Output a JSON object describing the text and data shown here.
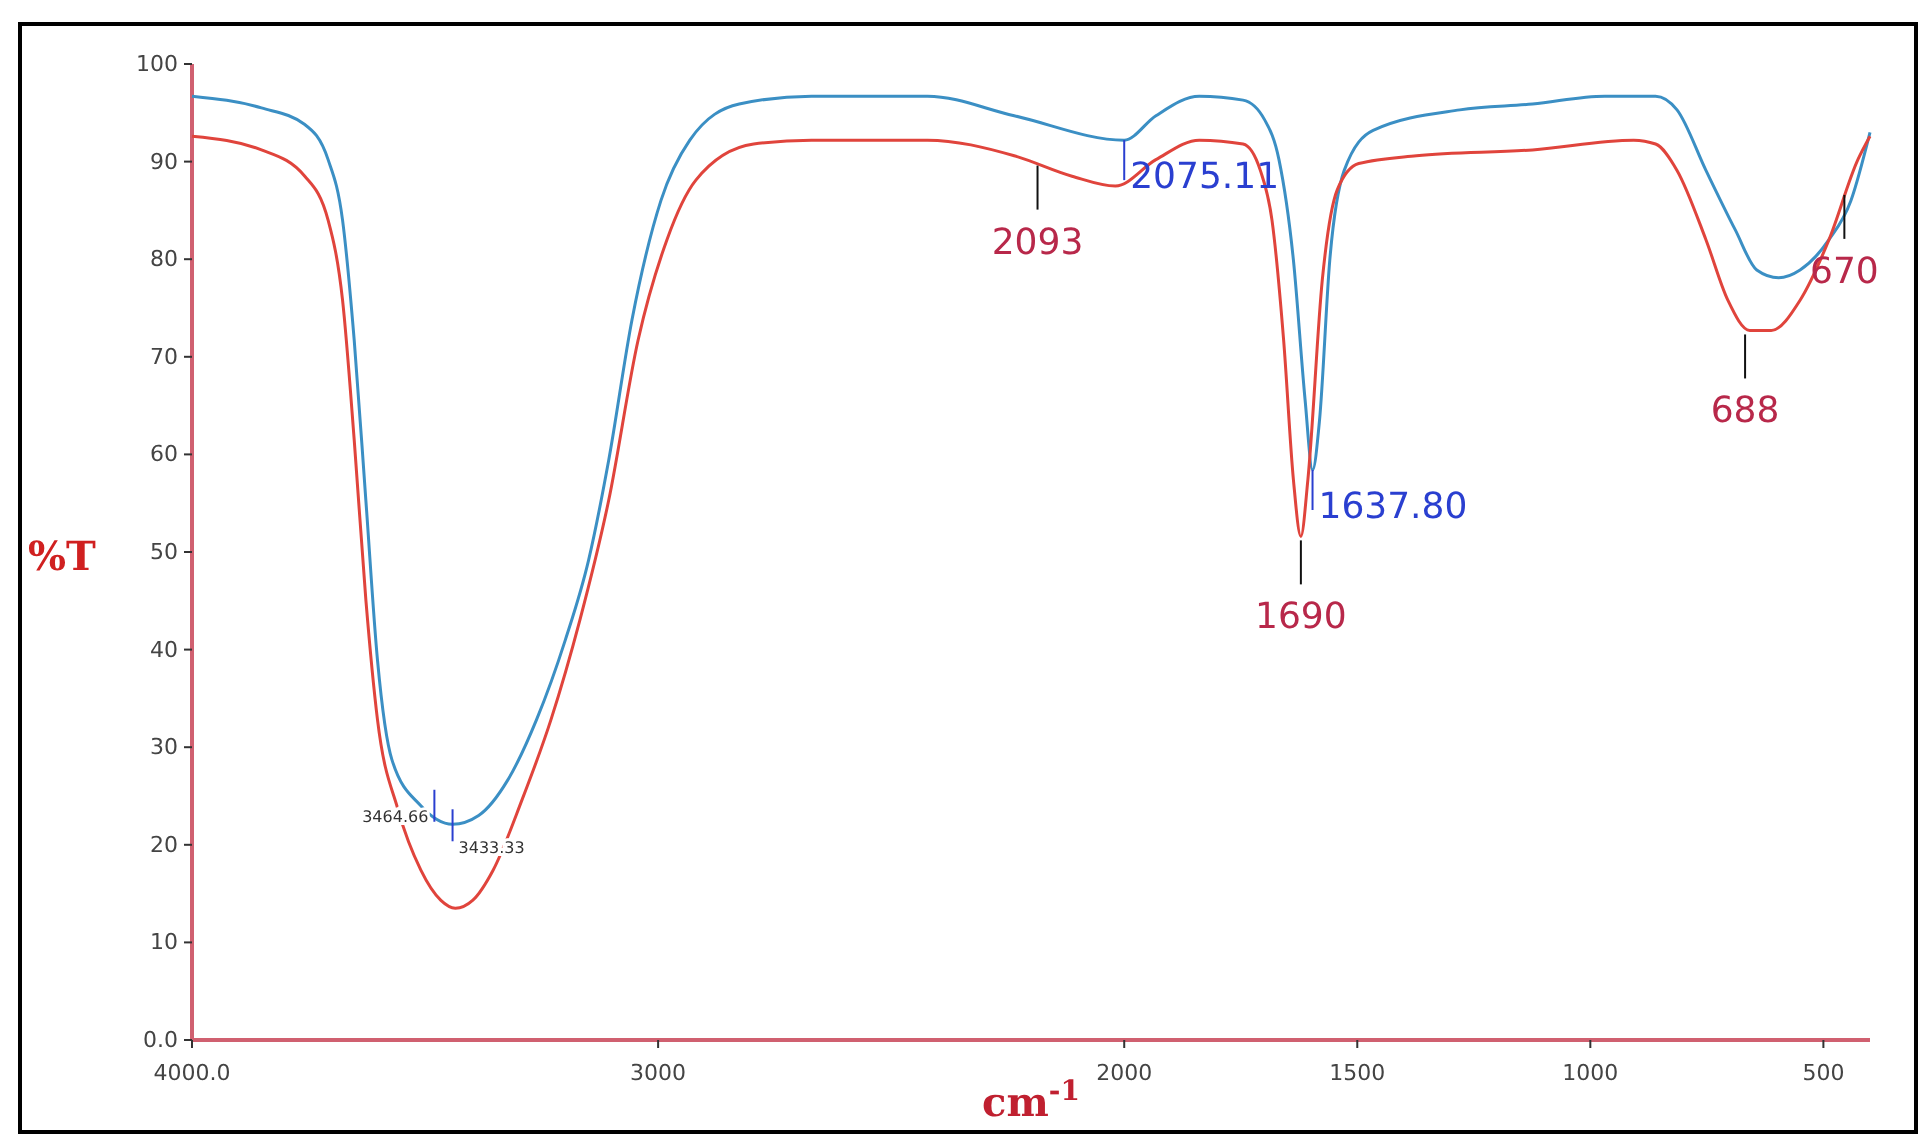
{
  "chart_data": {
    "type": "line",
    "xlabel": "cm$^{-1}$",
    "ylabel": "%T",
    "xlim": [
      4000,
      400
    ],
    "xticks": [
      {
        "value": 4000,
        "label": "4000.0"
      },
      3000,
      2000,
      1500,
      1000,
      500
    ],
    "ylim": [
      0,
      100
    ],
    "yticks": [
      {
        "value": 0,
        "label": "0.0"
      },
      10,
      20,
      30,
      40,
      50,
      60,
      70,
      80,
      90,
      100
    ],
    "series": [
      {
        "color": "#3b8fc4",
        "x": [
          4000,
          3851,
          3758,
          3708,
          3677,
          3652,
          3627,
          3602,
          3571,
          3509,
          3441,
          3385,
          3323,
          3261,
          3199,
          3149,
          3106,
          3056,
          2994,
          2932,
          2826,
          2671,
          2422,
          2236,
          2000,
          1932,
          1839,
          1745,
          1699,
          1668,
          1637,
          1612,
          1596,
          1581,
          1559,
          1528,
          1466,
          1280,
          1124,
          969,
          860,
          814,
          752,
          689,
          643,
          596,
          550,
          488,
          441,
          400
        ],
        "values": [
          96.7,
          95.5,
          93.8,
          90.2,
          84,
          71.7,
          55.3,
          38.9,
          28.7,
          24,
          22.1,
          23,
          26.6,
          32.8,
          41,
          49.2,
          59.4,
          73.8,
          86,
          92.2,
          95.9,
          96.7,
          96.7,
          94.7,
          92.2,
          94.7,
          96.7,
          96.3,
          94.3,
          90.2,
          79.9,
          65.6,
          58.4,
          63.5,
          79.9,
          89.1,
          93.2,
          95.3,
          95.9,
          96.7,
          96.7,
          95.3,
          89.1,
          83,
          78.9,
          78.1,
          78.9,
          82,
          86,
          93
        ]
      },
      {
        "color": "#e0443c",
        "x": [
          4000,
          3851,
          3758,
          3708,
          3677,
          3652,
          3627,
          3602,
          3558,
          3509,
          3466,
          3435,
          3398,
          3354,
          3292,
          3230,
          3168,
          3106,
          3043,
          2981,
          2919,
          2795,
          2671,
          2422,
          2236,
          2112,
          2019,
          1932,
          1839,
          1745,
          1708,
          1683,
          1658,
          1637,
          1621,
          1606,
          1575,
          1543,
          1497,
          1373,
          1124,
          907,
          860,
          814,
          752,
          705,
          658,
          612,
          550,
          488,
          426,
          400
        ],
        "values": [
          92.6,
          91.2,
          88.5,
          84,
          75.8,
          61.5,
          45.1,
          32.8,
          23.6,
          17.4,
          14.3,
          13.5,
          14.3,
          17.4,
          24.6,
          32.8,
          43,
          55.3,
          71.7,
          82,
          88.1,
          91.8,
          92.2,
          92.2,
          90.6,
          88.5,
          87.5,
          90.2,
          92.2,
          91.8,
          89.1,
          84,
          71.7,
          57.4,
          51.6,
          57.4,
          77.9,
          87.1,
          89.8,
          90.6,
          91.2,
          92.2,
          91.8,
          89.1,
          82,
          75.8,
          72.7,
          72.7,
          75.8,
          82,
          90.2,
          92.6
        ]
      }
    ],
    "annotations": [
      {
        "text": "3464.66",
        "x": 3480,
        "y": 24
      },
      {
        "text": "3433.33",
        "x": 3441,
        "y": 22
      },
      {
        "text": "2093",
        "x": 2186,
        "y": 90
      },
      {
        "text": "2075.11",
        "x": 2000,
        "y": 92.2
      },
      {
        "text": "1637.80",
        "x": 1596,
        "y": 58.4
      },
      {
        "text": "1690",
        "x": 1621,
        "y": 51.6
      },
      {
        "text": "688",
        "x": 668,
        "y": 72.7
      },
      {
        "text": "670",
        "x": 455,
        "y": 87
      }
    ]
  }
}
